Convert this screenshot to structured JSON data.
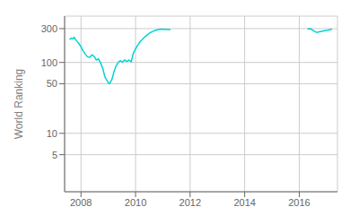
{
  "chart_data": {
    "type": "line",
    "ylabel": "World Ranking",
    "log": "y",
    "grid": true,
    "xlim": [
      2007.4,
      2017.4
    ],
    "xticks": [
      2008,
      2010,
      2012,
      2014,
      2016
    ],
    "ylim": [
      1.5,
      450
    ],
    "yticks": [
      5,
      10,
      50,
      100,
      300
    ],
    "series": [
      {
        "color": "#00d4d4",
        "x": [
          2007.58,
          2007.65,
          2007.7,
          2007.75,
          2007.8,
          2007.85,
          2007.92,
          2008.0,
          2008.08,
          2008.16,
          2008.24,
          2008.32,
          2008.4,
          2008.48,
          2008.56,
          2008.64,
          2008.72,
          2008.8,
          2008.88,
          2008.96,
          2009.0,
          2009.04,
          2009.08,
          2009.12,
          2009.16,
          2009.2,
          2009.28,
          2009.36,
          2009.44,
          2009.52,
          2009.6,
          2009.68,
          2009.76,
          2009.84,
          2009.92,
          2010.0,
          2010.08,
          2010.16,
          2010.24,
          2010.32,
          2010.4,
          2010.48,
          2010.56,
          2010.64,
          2010.72,
          2010.8,
          2010.88,
          2010.96,
          2011.04,
          2011.12,
          2011.2,
          2011.28
        ],
        "values": [
          210,
          220,
          215,
          225,
          210,
          200,
          185,
          165,
          145,
          130,
          120,
          118,
          128,
          122,
          108,
          112,
          98,
          82,
          62,
          55,
          52,
          50,
          53,
          56,
          62,
          72,
          88,
          100,
          106,
          101,
          108,
          103,
          108,
          102,
          135,
          155,
          175,
          195,
          210,
          225,
          240,
          255,
          265,
          275,
          283,
          288,
          292,
          295,
          293,
          292,
          291,
          290
        ]
      },
      {
        "color": "#00d4d4",
        "x": [
          2016.3,
          2016.36,
          2016.42,
          2016.55,
          2016.65,
          2016.73,
          2016.81,
          2016.89,
          2016.97,
          2017.05,
          2017.13,
          2017.2
        ],
        "values": [
          298,
          300,
          297,
          275,
          265,
          270,
          274,
          278,
          282,
          285,
          290,
          293
        ]
      }
    ]
  }
}
